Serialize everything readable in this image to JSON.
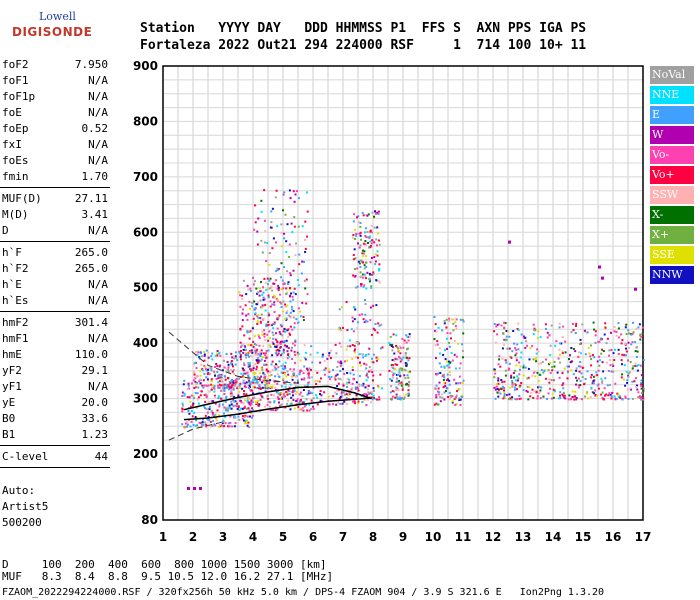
{
  "logo": {
    "line1": "Lowell",
    "line2": "DIGISONDE"
  },
  "header": {
    "line1": "Station   YYYY DAY   DDD HHMMSS P1  FFS S  AXN PPS IGA PS",
    "line2": "Fortaleza 2022 Out21 294 224000 RSF     1  714 100 10+ 11"
  },
  "params": [
    {
      "label": "foF2",
      "value": "7.950"
    },
    {
      "label": "foF1",
      "value": "N/A"
    },
    {
      "label": "foF1p",
      "value": "N/A"
    },
    {
      "label": "foE",
      "value": "N/A"
    },
    {
      "label": "foEp",
      "value": "0.52"
    },
    {
      "label": "fxI",
      "value": "N/A"
    },
    {
      "label": "foEs",
      "value": "N/A"
    },
    {
      "label": "fmin",
      "value": "1.70"
    },
    {
      "label": "MUF(D)",
      "value": "27.11"
    },
    {
      "label": "M(D)",
      "value": "3.41"
    },
    {
      "label": "D",
      "value": "N/A"
    },
    {
      "label": "h`F",
      "value": "265.0"
    },
    {
      "label": "h`F2",
      "value": "265.0"
    },
    {
      "label": "h`E",
      "value": "N/A"
    },
    {
      "label": "h`Es",
      "value": "N/A"
    },
    {
      "label": "hmF2",
      "value": "301.4"
    },
    {
      "label": "hmF1",
      "value": "N/A"
    },
    {
      "label": "hmE",
      "value": "110.0"
    },
    {
      "label": "yF2",
      "value": "29.1"
    },
    {
      "label": "yF1",
      "value": "N/A"
    },
    {
      "label": "yE",
      "value": "20.0"
    },
    {
      "label": "B0",
      "value": "33.6"
    },
    {
      "label": "B1",
      "value": "1.23"
    },
    {
      "label": "C-level",
      "value": "44"
    }
  ],
  "auto": {
    "line1": "Auto:",
    "line2": "Artist5",
    "line3": "500200"
  },
  "legend": [
    {
      "label": "NoVal",
      "color": "#a0a0a0"
    },
    {
      "label": "NNE",
      "color": "#00e0ff"
    },
    {
      "label": "E",
      "color": "#40a0ff"
    },
    {
      "label": "W",
      "color": "#b000b0"
    },
    {
      "label": "Vo-",
      "color": "#ff40b0"
    },
    {
      "label": "Vo+",
      "color": "#ff0040"
    },
    {
      "label": "SSW",
      "color": "#ffb0b0"
    },
    {
      "label": "X-",
      "color": "#007000"
    },
    {
      "label": "X+",
      "color": "#70b040"
    },
    {
      "label": "SSE",
      "color": "#e0e000"
    },
    {
      "label": "NNW",
      "color": "#1010c0"
    }
  ],
  "footer": {
    "line1": "D     100  200  400  600  800 1000 1500 3000 [km]",
    "line2": "MUF   8.3  8.4  8.8  9.5 10.5 12.0 16.2 27.1 [MHz]",
    "line3": "FZAOM_2022294224000.RSF / 320fx256h 50 kHz 5.0 km / DPS-4 FZAOM 904 / 3.9 S 321.6 E   Ion2Png 1.3.20"
  },
  "chart_data": {
    "type": "scatter",
    "title": "",
    "xlabel": "",
    "ylabel": "",
    "xlim": [
      1,
      17
    ],
    "ylim": [
      80,
      900
    ],
    "x_ticks": [
      1,
      2,
      3,
      4,
      5,
      6,
      7,
      8,
      9,
      10,
      11,
      12,
      13,
      14,
      15,
      16,
      17
    ],
    "y_ticks": [
      80,
      200,
      300,
      400,
      500,
      600,
      700,
      800,
      900
    ],
    "grid": true,
    "legend_position": "right",
    "clusters": [
      {
        "x_range": [
          1.6,
          4.0
        ],
        "h_range": [
          250,
          340
        ]
      },
      {
        "x_range": [
          2.0,
          4.5
        ],
        "h_range": [
          320,
          390
        ]
      },
      {
        "x_range": [
          3.0,
          6.0
        ],
        "h_range": [
          280,
          370
        ]
      },
      {
        "x_range": [
          4.0,
          8.0
        ],
        "h_range": [
          290,
          400
        ]
      },
      {
        "x_range": [
          3.5,
          5.5
        ],
        "h_range": [
          380,
          520
        ]
      },
      {
        "x_range": [
          6.7,
          8.3
        ],
        "h_range": [
          300,
          480
        ]
      },
      {
        "x_range": [
          8.5,
          9.2
        ],
        "h_range": [
          300,
          420
        ]
      },
      {
        "x_range": [
          10.0,
          11.0
        ],
        "h_range": [
          290,
          450
        ]
      },
      {
        "x_range": [
          12.0,
          13.0
        ],
        "h_range": [
          300,
          440
        ]
      },
      {
        "x_range": [
          13.0,
          14.5
        ],
        "h_range": [
          300,
          440
        ]
      },
      {
        "x_range": [
          14.5,
          15.8
        ],
        "h_range": [
          300,
          440
        ]
      },
      {
        "x_range": [
          15.8,
          17.0
        ],
        "h_range": [
          300,
          440
        ]
      },
      {
        "x_range": [
          4.0,
          5.8
        ],
        "h_range": [
          440,
          680
        ]
      },
      {
        "x_range": [
          7.3,
          8.2
        ],
        "h_range": [
          500,
          640
        ]
      }
    ],
    "sporadic_points": [
      {
        "x": 1.8,
        "h": 140
      },
      {
        "x": 2.0,
        "h": 140
      },
      {
        "x": 2.2,
        "h": 140
      },
      {
        "x": 15.5,
        "h": 540
      },
      {
        "x": 15.6,
        "h": 520
      },
      {
        "x": 16.7,
        "h": 500
      },
      {
        "x": 12.5,
        "h": 585
      }
    ],
    "profile_curve": [
      {
        "x": 1.7,
        "h": 262
      },
      {
        "x": 2.5,
        "h": 265
      },
      {
        "x": 3.5,
        "h": 272
      },
      {
        "x": 4.5,
        "h": 281
      },
      {
        "x": 5.5,
        "h": 289
      },
      {
        "x": 6.5,
        "h": 295
      },
      {
        "x": 7.95,
        "h": 301
      }
    ],
    "trace_curve": [
      {
        "x": 1.7,
        "h": 280
      },
      {
        "x": 2.5,
        "h": 290
      },
      {
        "x": 3.5,
        "h": 302
      },
      {
        "x": 4.5,
        "h": 312
      },
      {
        "x": 5.5,
        "h": 320
      },
      {
        "x": 6.5,
        "h": 322
      },
      {
        "x": 7.4,
        "h": 310
      },
      {
        "x": 7.95,
        "h": 300
      }
    ],
    "dashed_upper": [
      {
        "x": 1.2,
        "h": 420
      },
      {
        "x": 2.5,
        "h": 360
      },
      {
        "x": 3.5,
        "h": 340
      },
      {
        "x": 4.5,
        "h": 332
      },
      {
        "x": 5.5,
        "h": 328
      }
    ],
    "dashed_lower": [
      {
        "x": 1.2,
        "h": 225
      },
      {
        "x": 2.0,
        "h": 245
      },
      {
        "x": 3.0,
        "h": 258
      }
    ]
  }
}
